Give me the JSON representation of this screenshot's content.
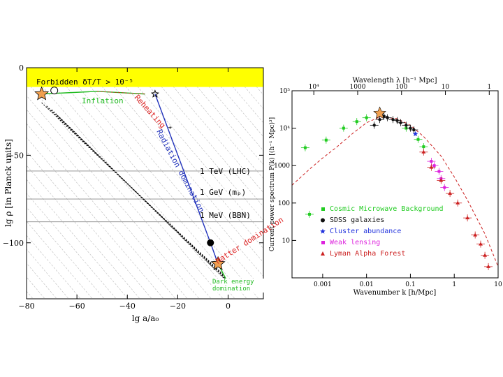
{
  "colors": {
    "band": "#ffff00",
    "inflation": "#22bb22",
    "reheating": "#dd2222",
    "radiation": "#2233bb",
    "matter": "#dd2222",
    "darkenergy": "#22bb22",
    "star": "#f0a050",
    "cmb": "#22cc22",
    "sdss": "#111111",
    "cluster": "#2233dd",
    "weak": "#dd22dd",
    "lyman": "#cc2222"
  },
  "chart_data": [
    {
      "type": "line",
      "xlabel": "lg a/a₀",
      "ylabel": "lg ρ [in Planck units]",
      "xlim": [
        -80,
        14
      ],
      "ylim": [
        -132,
        0
      ],
      "xticks": [
        "−80",
        "−60",
        "−40",
        "−20",
        "0"
      ],
      "xtick_values": [
        -80,
        -60,
        -40,
        -20,
        0
      ],
      "yticks": [
        "0",
        "−50",
        "−100"
      ],
      "ytick_values": [
        0,
        -50,
        -100
      ],
      "band": {
        "label": "Forbidden δT/T > 10⁻⁵",
        "from": 0,
        "to": -11
      },
      "labels": {
        "inflation": "Inflation",
        "reheating": "Reheating",
        "radiation": "Radiation domination",
        "matter": "Matter domination",
        "darkenergy": "Dark energy domination",
        "tev": "1 TeV (LHC)",
        "gev": "1 GeV (mₚ)",
        "mev": "1 MeV (BBN)"
      },
      "hlines": [
        -59,
        -75,
        -88
      ],
      "series": [
        {
          "x": [
            -74,
            -52,
            -33
          ],
          "y": [
            -15,
            -13.5,
            -15
          ]
        },
        {
          "x": [
            -29,
            -7,
            -4
          ],
          "y": [
            -15,
            -100,
            -112
          ]
        },
        {
          "x": [
            -4,
            0,
            12
          ],
          "y": [
            -112,
            -123,
            -123
          ]
        }
      ],
      "markers": [
        {
          "x": -74,
          "y": -15,
          "kind": "star"
        },
        {
          "x": -69,
          "y": -13,
          "kind": "circle"
        },
        {
          "x": -29,
          "y": -15,
          "kind": "star-small"
        },
        {
          "x": -23,
          "y": -34,
          "kind": "tick"
        },
        {
          "x": -7,
          "y": -100,
          "kind": "dot"
        },
        {
          "x": -4,
          "y": -112,
          "kind": "star"
        },
        {
          "x": 0,
          "y": -123,
          "kind": "triangle"
        }
      ],
      "dotted_lines": [
        {
          "x": [
            -74,
            -2
          ],
          "y": [
            -20,
            -118
          ]
        },
        {
          "x": [
            -72,
            -1
          ],
          "y": [
            -22,
            -120
          ]
        },
        {
          "x": [
            -70,
            0
          ],
          "y": [
            -24,
            -122
          ]
        },
        {
          "x": [
            -68,
            1
          ],
          "y": [
            -27,
            -124
          ]
        }
      ]
    },
    {
      "type": "scatter",
      "xlabel": "Wavenumber k [h/Mpc]",
      "ylabel": "Current power spectrum P(k) [(h⁻¹ Mpc)³]",
      "top_label": "Wavelength λ [h⁻¹ Mpc]",
      "xscale": "log",
      "yscale": "log",
      "xlim": [
        0.0002,
        10
      ],
      "ylim": [
        1,
        100000
      ],
      "xticks": [
        "0.001",
        "0.01",
        "0.1",
        "1",
        "10"
      ],
      "xtick_values": [
        0.001,
        0.01,
        0.1,
        1,
        10
      ],
      "yticks": [
        "10⁵",
        "10⁴",
        "1000",
        "100",
        "10"
      ],
      "ytick_values": [
        100000,
        10000,
        1000,
        100,
        10
      ],
      "top_ticks": [
        "10⁴",
        "1000",
        "100",
        "10",
        "1"
      ],
      "top_tick_k": [
        0.000628,
        0.00628,
        0.0628,
        0.628,
        6.28
      ],
      "legend": [
        {
          "label": "Cosmic Microwave Background",
          "color_key": "cmb",
          "marker": "square"
        },
        {
          "label": "SDSS galaxies",
          "color_key": "sdss",
          "marker": "circle"
        },
        {
          "label": "Cluster abundance",
          "color_key": "cluster",
          "marker": "star"
        },
        {
          "label": "Weak lensing",
          "color_key": "weak",
          "marker": "square"
        },
        {
          "label": "Lyman Alpha Forest",
          "color_key": "lyman",
          "marker": "triangle"
        }
      ],
      "model_curve": {
        "k": [
          0.0002,
          0.0005,
          0.001,
          0.002,
          0.005,
          0.01,
          0.02,
          0.05,
          0.1,
          0.2,
          0.5,
          1,
          2,
          5,
          10
        ],
        "p": [
          300,
          800,
          1600,
          3000,
          7500,
          14000,
          20000,
          18000,
          12000,
          6000,
          1800,
          500,
          120,
          15,
          2
        ]
      },
      "cmb": [
        {
          "k": 0.0004,
          "p": 3000
        },
        {
          "k": 0.0005,
          "p": 50
        },
        {
          "k": 0.0012,
          "p": 4800
        },
        {
          "k": 0.003,
          "p": 10000
        },
        {
          "k": 0.006,
          "p": 15000
        },
        {
          "k": 0.01,
          "p": 19000
        },
        {
          "k": 0.08,
          "p": 10000
        },
        {
          "k": 0.15,
          "p": 5000
        },
        {
          "k": 0.2,
          "p": 3200
        }
      ],
      "sdss": [
        {
          "k": 0.015,
          "p": 12000
        },
        {
          "k": 0.02,
          "p": 17000
        },
        {
          "k": 0.025,
          "p": 21000
        },
        {
          "k": 0.03,
          "p": 19000
        },
        {
          "k": 0.04,
          "p": 17000
        },
        {
          "k": 0.05,
          "p": 16000
        },
        {
          "k": 0.06,
          "p": 14000
        },
        {
          "k": 0.08,
          "p": 12000
        },
        {
          "k": 0.1,
          "p": 10000
        },
        {
          "k": 0.12,
          "p": 9000
        }
      ],
      "cluster": [
        {
          "k": 0.13,
          "p": 7000
        }
      ],
      "weak": [
        {
          "k": 0.3,
          "p": 1300
        },
        {
          "k": 0.35,
          "p": 1000
        },
        {
          "k": 0.45,
          "p": 700
        },
        {
          "k": 0.5,
          "p": 450
        },
        {
          "k": 0.6,
          "p": 260
        }
      ],
      "lyman": [
        {
          "k": 0.2,
          "p": 2300
        },
        {
          "k": 0.3,
          "p": 900
        },
        {
          "k": 0.5,
          "p": 400
        },
        {
          "k": 0.8,
          "p": 180
        },
        {
          "k": 1.2,
          "p": 100
        },
        {
          "k": 2,
          "p": 40
        },
        {
          "k": 3,
          "p": 14
        },
        {
          "k": 4,
          "p": 8
        },
        {
          "k": 5,
          "p": 4
        },
        {
          "k": 6,
          "p": 2
        }
      ],
      "star": {
        "k": 0.02,
        "p": 25000
      }
    }
  ]
}
